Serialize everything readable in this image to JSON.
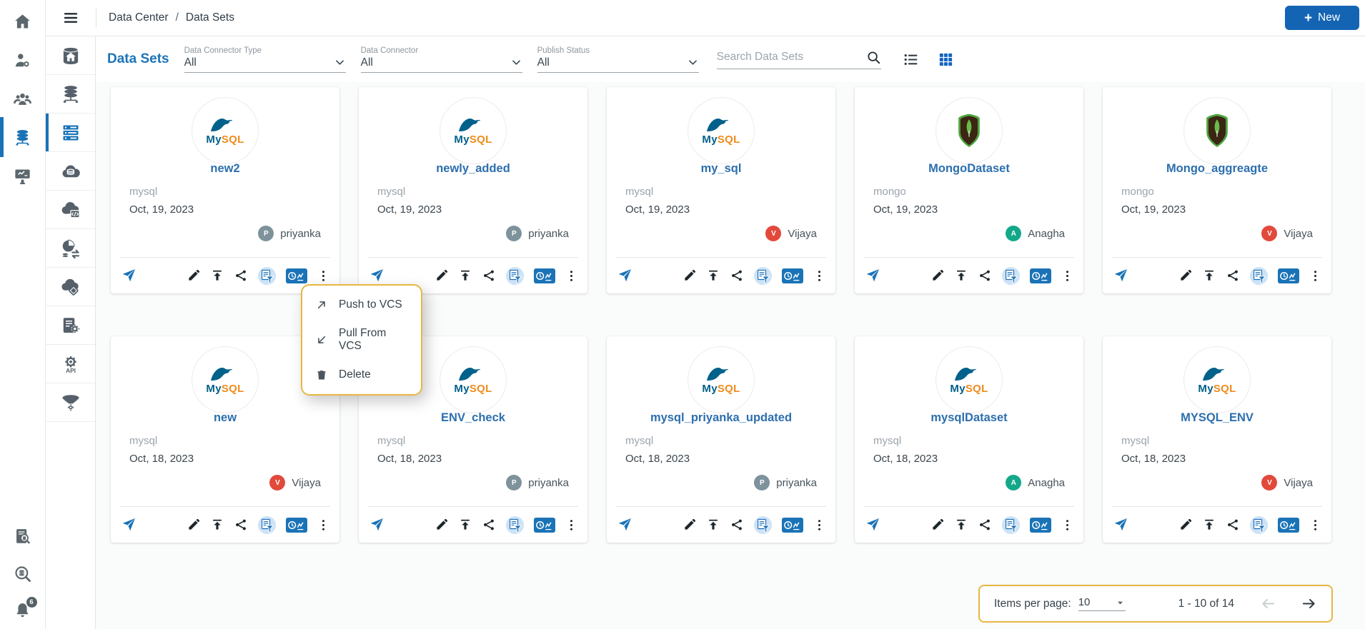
{
  "topbar": {
    "breadcrumb": {
      "section": "Data Center",
      "separator": "/",
      "page": "Data Sets"
    },
    "new_button_label": "New",
    "menu_icon": "hamburger-icon"
  },
  "page_title": "Data Sets",
  "filters": [
    {
      "label": "Data Connector Type",
      "value": "All"
    },
    {
      "label": "Data Connector",
      "value": "All"
    },
    {
      "label": "Publish Status",
      "value": "All"
    }
  ],
  "search": {
    "placeholder": "Search Data Sets",
    "icon": "search-icon"
  },
  "view_toggle": {
    "list_icon": "list-view-icon",
    "grid_icon": "grid-view-icon",
    "active": "grid"
  },
  "sidebar_primary": {
    "top_items": [
      {
        "icon": "home-icon",
        "active": false
      },
      {
        "icon": "user-settings-icon",
        "active": false
      },
      {
        "icon": "user-group-icon",
        "active": false
      },
      {
        "icon": "database-icon",
        "active": true
      },
      {
        "icon": "monitor-user-icon",
        "active": false
      }
    ],
    "bottom_items": [
      {
        "icon": "catalog-search-icon"
      },
      {
        "icon": "data-search-icon"
      },
      {
        "icon": "notifications-bell-icon",
        "badge": "6"
      }
    ]
  },
  "sidebar_secondary": {
    "items": [
      {
        "icon": "database-home-icon",
        "active": false
      },
      {
        "icon": "database-network-icon",
        "active": false
      },
      {
        "icon": "data-sets-icon",
        "active": true
      },
      {
        "icon": "cloud-database-icon",
        "active": false
      },
      {
        "icon": "cloud-code-icon",
        "active": false
      },
      {
        "icon": "data-sync-icon",
        "active": false
      },
      {
        "icon": "cloud-layers-icon",
        "active": false
      },
      {
        "icon": "document-gear-icon",
        "active": false
      },
      {
        "icon": "api-gear-icon",
        "active": false
      },
      {
        "icon": "funnel-gear-icon",
        "active": false
      }
    ]
  },
  "cards": [
    {
      "name": "new2",
      "connector": "mysql",
      "date": "Oct, 19, 2023",
      "owner": "priyanka",
      "owner_initial": "P",
      "avatar_color": "#7e929c",
      "logo": "mysql"
    },
    {
      "name": "newly_added",
      "connector": "mysql",
      "date": "Oct, 19, 2023",
      "owner": "priyanka",
      "owner_initial": "P",
      "avatar_color": "#7e929c",
      "logo": "mysql"
    },
    {
      "name": "my_sql",
      "connector": "mysql",
      "date": "Oct, 19, 2023",
      "owner": "Vijaya",
      "owner_initial": "V",
      "avatar_color": "#e2493b",
      "logo": "mysql"
    },
    {
      "name": "MongoDataset",
      "connector": "mongo",
      "date": "Oct, 19, 2023",
      "owner": "Anagha",
      "owner_initial": "A",
      "avatar_color": "#13a88a",
      "logo": "mongo"
    },
    {
      "name": "Mongo_aggreagte",
      "connector": "mongo",
      "date": "Oct, 19, 2023",
      "owner": "Vijaya",
      "owner_initial": "V",
      "avatar_color": "#e2493b",
      "logo": "mongo"
    },
    {
      "name": "new",
      "connector": "mysql",
      "date": "Oct, 18, 2023",
      "owner": "Vijaya",
      "owner_initial": "V",
      "avatar_color": "#e2493b",
      "logo": "mysql"
    },
    {
      "name": "ENV_check",
      "connector": "mysql",
      "date": "Oct, 18, 2023",
      "owner": "priyanka",
      "owner_initial": "P",
      "avatar_color": "#7e929c",
      "logo": "mysql"
    },
    {
      "name": "mysql_priyanka_updated",
      "connector": "mysql",
      "date": "Oct, 18, 2023",
      "owner": "priyanka",
      "owner_initial": "P",
      "avatar_color": "#7e929c",
      "logo": "mysql"
    },
    {
      "name": "mysqlDataset",
      "connector": "mysql",
      "date": "Oct, 18, 2023",
      "owner": "Anagha",
      "owner_initial": "A",
      "avatar_color": "#13a88a",
      "logo": "mysql"
    },
    {
      "name": "MYSQL_ENV",
      "connector": "mysql",
      "date": "Oct, 18, 2023",
      "owner": "Vijaya",
      "owner_initial": "V",
      "avatar_color": "#e2493b",
      "logo": "mysql"
    }
  ],
  "card_actions": [
    {
      "icon": "send-icon"
    },
    {
      "icon": "edit-icon"
    },
    {
      "icon": "publish-icon"
    },
    {
      "icon": "share-icon"
    },
    {
      "icon": "copy-filter-icon"
    },
    {
      "icon": "analytics-icon"
    },
    {
      "icon": "more-menu-icon"
    }
  ],
  "context_menu": {
    "items": [
      {
        "icon": "arrow-up-right-icon",
        "label": "Push to VCS"
      },
      {
        "icon": "arrow-down-left-icon",
        "label": "Pull From VCS"
      },
      {
        "icon": "trash-icon",
        "label": "Delete"
      }
    ]
  },
  "pagination": {
    "items_per_page_label": "Items per page:",
    "items_per_page_value": "10",
    "range_label": "1 - 10 of 14"
  },
  "colors": {
    "accent_blue": "#1a73b7",
    "button_blue": "#1464b4",
    "highlight_yellow": "#e7b742",
    "mysql_blue": "#00618a",
    "mysql_orange": "#ef8b1c",
    "mongo_green": "#4da53f",
    "avatar_gray": "#7e929c",
    "avatar_red": "#e2493b",
    "avatar_teal": "#13a88a"
  }
}
